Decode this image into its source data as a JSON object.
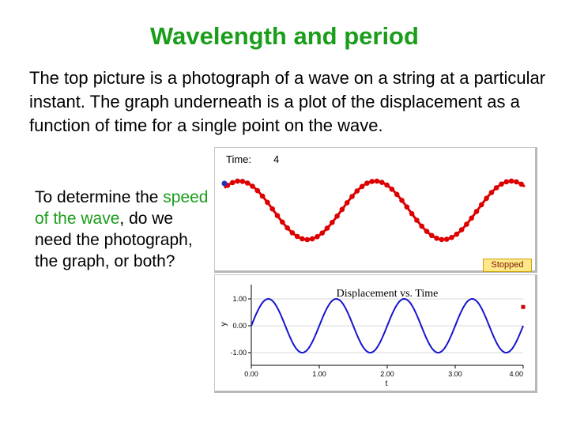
{
  "slide": {
    "title": "Wavelength and period",
    "intro": "The top picture is a photograph of a wave on a string at a particular instant. The graph underneath is a plot of the displacement as a function of time for a single point on the wave.",
    "question_before": "To determine the ",
    "question_highlight": "speed of the wave",
    "question_after": ", do we need the photograph, the graph, or both?"
  },
  "simulation": {
    "time_label": "Time:",
    "time_value": "4",
    "status": "Stopped"
  },
  "chart_data": {
    "type": "line",
    "title": "Displacement vs. Time",
    "xlabel": "t",
    "ylabel": "y",
    "xlim": [
      0,
      4
    ],
    "ylim": [
      -1,
      1
    ],
    "x_ticks": [
      "0.00",
      "1.00",
      "2.00",
      "3.00",
      "4.00"
    ],
    "y_ticks": [
      "1.00",
      "0.00",
      "-1.00"
    ],
    "series": [
      {
        "function": "sin",
        "amplitude": 1,
        "period": 1,
        "x_start": 0,
        "x_end": 4
      }
    ]
  },
  "colors": {
    "title": "#1a9e1a",
    "highlight": "#1a9e1a",
    "string_wave": "#dd0000",
    "graph_line": "#1515d0",
    "marker": "#2233bb"
  }
}
